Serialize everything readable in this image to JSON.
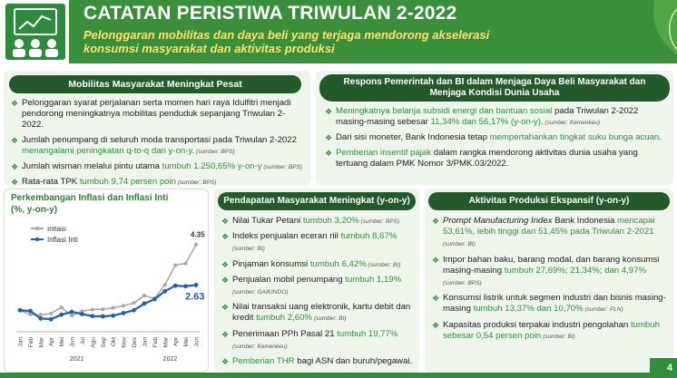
{
  "header": {
    "title": "CATATAN PERISTIWA TRIWULAN 2-2022",
    "subtitle": "Pelonggaran mobilitas dan daya beli yang terjaga mendorong akselerasi konsumsi masyarakat dan aktivitas produksi"
  },
  "mobilitas": {
    "heading": "Mobilitas Masyarakat Meningkat Pesat",
    "items": [
      [
        "Pelonggaran syarat perjalanan serta momen hari raya Idulfitri menjadi pendorong meningkatnya mobilitas penduduk sepanjang Triwulan 2-2022.",
        ""
      ],
      [
        "Jumlah penumpang di seluruh moda transportasi pada Triwulan 2-2022 ",
        "menangalami peningkatan q-to-q dan y-on-y.",
        " (sumber: BPS)"
      ],
      [
        "Jumlah wisman melalui pintu utama ",
        "tumbuh 1.250,65% y-on-y",
        " (sumber: BPS)"
      ],
      [
        "Rata-rata TPK ",
        "tumbuh 9,74 persen poin",
        " (sumber: BPS)"
      ]
    ]
  },
  "respons": {
    "heading": "Respons Pemerintah dan BI dalam Menjaga Daya Beli Masyarakat dan Menjaga Kondisi Dunia Usaha",
    "items": [
      [
        "Meningkatnya belanja subsidi energi dan bantuan sosial",
        " pada Triwulan 2-2022 masing-masing sebesar ",
        "11,34% dan 56,17% (y-on-y).",
        " (sumber: Kemenkeu)"
      ],
      [
        "Dari sisi moneter, Bank Indonesia tetap ",
        "mempertahankan tingkat suku bunga acuan",
        "."
      ],
      [
        "Pemberian insentif pajak",
        " dalam rangka mendorong aktivitas dunia usaha yang tertuang dalam PMK Nomor 3/PMK.03/2022."
      ]
    ]
  },
  "pendapatan": {
    "heading": "Pendapatan Masyarakat Meningkat (y-on-y)",
    "items": [
      [
        "Nilai Tukar Petani ",
        "tumbuh 3,20%",
        " (sumber: BPS)"
      ],
      [
        "Indeks penjualan eceran riil ",
        "tumbuh 8,67%",
        " (sumber: BI)"
      ],
      [
        "Pinjaman konsumsi ",
        "tumbuh 6,42%",
        " (sumber: BI)"
      ],
      [
        "Penjualan mobil penumpang ",
        "tumbuh 1,19%",
        " (sumber: GAIKINDO)"
      ],
      [
        "Nilai transaksi uang elektronik, kartu debit dan kredit ",
        "tumbuh 2,60%",
        " (sumber: BI)"
      ],
      [
        "Penerimaan PPh Pasal 21 ",
        "tumbuh 19,77%",
        " (sumber: Kemenkeu)"
      ],
      [
        "Pemberian THR",
        " bagi ASN dan buruh/pegawai.",
        ""
      ]
    ]
  },
  "produksi": {
    "heading": "Aktivitas Produksi Ekspansif (y-on-y)",
    "items": [
      [
        "Prompt Manufacturing Index",
        " Bank Indonesia ",
        "mencapai 53,61%, lebih tinggi dari 51,45% pada Triwulan 2-2021",
        " (sumber: BI)"
      ],
      [
        "Impor bahan baku, barang modal, dan barang konsumsi masing-masing ",
        "tumbuh 27,69%; 21,34%; dan 4,97%",
        " (sumber: BPS)"
      ],
      [
        "Konsumsi listrik untuk segmen industri dan bisnis masing-masing ",
        "tumbuh 13,37% dan 10,70%",
        " (sumber: PLN)"
      ],
      [
        "Kapasitas produksi terpakai industri pengolahan ",
        "tumbuh sebesar 0,54 persen poin",
        " (sumber: BI)"
      ]
    ]
  },
  "chart_data": {
    "type": "line",
    "title": "Perkembangan Inflasi dan Inflasi Inti",
    "subtitle": "(%, y-on-y)",
    "categories": [
      "Jan",
      "Feb",
      "Mar",
      "Apr",
      "Mei",
      "Jun",
      "Jul",
      "Agu",
      "Sep",
      "Okt",
      "Nov",
      "Des",
      "Jan",
      "Feb",
      "Mar",
      "Apr",
      "Mei",
      "Jun"
    ],
    "year_labels": [
      "2021",
      "2022"
    ],
    "series": [
      {
        "name": "Inflasi",
        "values": [
          1.55,
          1.38,
          1.37,
          1.42,
          1.68,
          1.33,
          1.52,
          1.59,
          1.6,
          1.66,
          1.75,
          1.87,
          2.18,
          2.06,
          2.64,
          3.47,
          3.55,
          4.35
        ],
        "color": "#a9a9a9"
      },
      {
        "name": "Inflasi Inti",
        "values": [
          1.56,
          1.53,
          1.21,
          1.18,
          1.37,
          1.49,
          1.4,
          1.31,
          1.3,
          1.33,
          1.44,
          1.56,
          1.84,
          2.03,
          2.37,
          2.6,
          2.58,
          2.63
        ],
        "color": "#1f5fb0"
      }
    ],
    "labels": {
      "Inflasi": "4.35",
      "Inflasi Inti": "2.63"
    },
    "ylim": [
      0.8,
      4.8
    ]
  },
  "page": {
    "number": "4"
  }
}
